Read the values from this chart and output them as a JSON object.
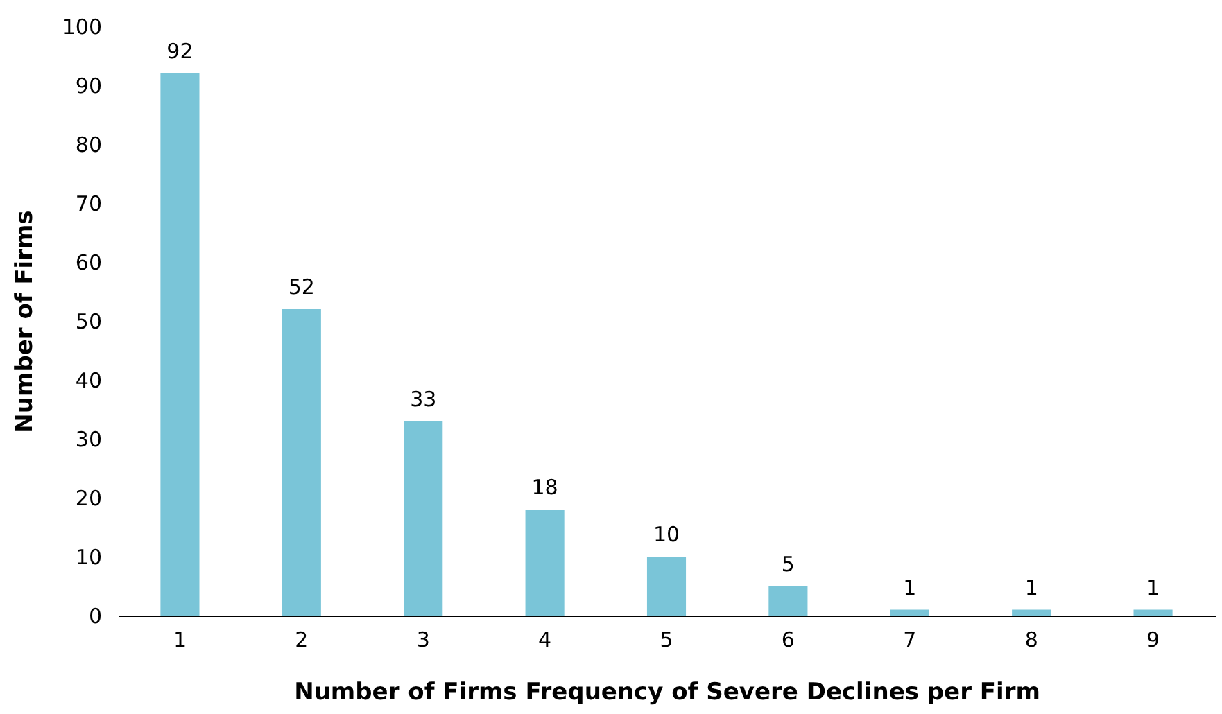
{
  "chart_data": {
    "type": "bar",
    "xlabel": "Number of Firms Frequency of Severe Declines per Firm",
    "ylabel": "Number of Firms",
    "categories": [
      "1",
      "2",
      "3",
      "4",
      "5",
      "6",
      "7",
      "8",
      "9"
    ],
    "values": [
      92,
      52,
      33,
      18,
      10,
      5,
      1,
      1,
      1
    ],
    "color": "#7ac5d8",
    "ylim": [
      0,
      100
    ],
    "yticks": [
      0,
      10,
      20,
      30,
      40,
      50,
      60,
      70,
      80,
      90,
      100
    ],
    "data_labels": true
  }
}
